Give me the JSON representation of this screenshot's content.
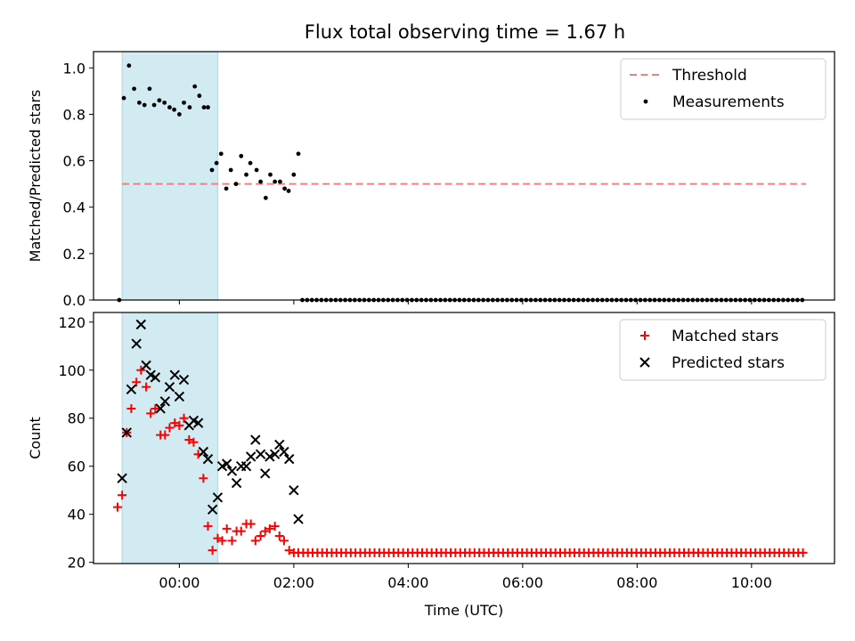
{
  "title": "Flux total observing time = 1.67 h",
  "colors": {
    "threshold": "#f08080",
    "measurement": "#000000",
    "matched": "#ff0000",
    "predicted": "#000000",
    "span": "#add8e6"
  },
  "chart_data": [
    {
      "type": "scatter",
      "ylabel": "Matched/Predicted stars",
      "ylim": [
        0,
        1.07
      ],
      "yticks": [
        0.0,
        0.2,
        0.4,
        0.6,
        0.8,
        1.0
      ],
      "ytick_labels": [
        "0.0",
        "0.2",
        "0.4",
        "0.6",
        "0.8",
        "1.0"
      ],
      "xlim": [
        -1.5,
        11.45
      ],
      "x_unit": "hours (UTC)",
      "xticks": [
        0,
        2,
        4,
        6,
        8,
        10
      ],
      "highlight_span": [
        -1.0,
        0.67
      ],
      "legend_position": "upper right",
      "series": [
        {
          "name": "Threshold",
          "kind": "dashed-line",
          "x": [
            -1.0,
            10.95
          ],
          "y": [
            0.5,
            0.5
          ]
        },
        {
          "name": "Measurements",
          "kind": "dot",
          "x": [
            -1.05,
            -0.97,
            -0.88,
            -0.79,
            -0.7,
            -0.61,
            -0.52,
            -0.44,
            -0.35,
            -0.26,
            -0.17,
            -0.09,
            0.0,
            0.08,
            0.18,
            0.27,
            0.35,
            0.43,
            0.5,
            0.57,
            0.65,
            0.73,
            0.82,
            0.9,
            0.99,
            1.08,
            1.17,
            1.24,
            1.35,
            1.42,
            1.51,
            1.59,
            1.67,
            1.76,
            1.84,
            1.91,
            2.0,
            2.08
          ],
          "y": [
            0.0,
            0.87,
            1.01,
            0.91,
            0.85,
            0.84,
            0.91,
            0.84,
            0.86,
            0.85,
            0.83,
            0.82,
            0.8,
            0.85,
            0.83,
            0.92,
            0.88,
            0.83,
            0.83,
            0.56,
            0.59,
            0.63,
            0.48,
            0.56,
            0.5,
            0.62,
            0.54,
            0.59,
            0.56,
            0.51,
            0.44,
            0.54,
            0.51,
            0.51,
            0.48,
            0.47,
            0.54,
            0.63
          ],
          "zeros_from": 2.15,
          "zeros_to": 10.92,
          "zeros_step": 0.0832
        }
      ]
    },
    {
      "type": "scatter",
      "ylabel": "Count",
      "xlabel": "Time (UTC)",
      "ylim": [
        19.5,
        124
      ],
      "yticks": [
        20,
        40,
        60,
        80,
        100,
        120
      ],
      "ytick_labels": [
        "20",
        "40",
        "60",
        "80",
        "100",
        "120"
      ],
      "xlim": [
        -1.5,
        11.45
      ],
      "xticks": [
        0,
        2,
        4,
        6,
        8,
        10
      ],
      "xtick_labels": [
        "00:00",
        "02:00",
        "04:00",
        "06:00",
        "08:00",
        "10:00"
      ],
      "highlight_span": [
        -1.0,
        0.67
      ],
      "legend_position": "upper right",
      "series": [
        {
          "name": "Matched stars",
          "marker": "+",
          "x": [
            -1.08,
            -1.0,
            -0.92,
            -0.84,
            -0.75,
            -0.67,
            -0.58,
            -0.5,
            -0.42,
            -0.33,
            -0.25,
            -0.17,
            -0.08,
            0.0,
            0.08,
            0.17,
            0.25,
            0.33,
            0.42,
            0.5,
            0.58,
            0.67,
            0.75,
            0.83,
            0.92,
            1.0,
            1.08,
            1.17,
            1.25,
            1.33,
            1.42,
            1.5,
            1.58,
            1.67,
            1.75,
            1.83,
            1.92,
            2.0
          ],
          "y": [
            43,
            48,
            74,
            84,
            95,
            100,
            93,
            82,
            84,
            73,
            73,
            76,
            78,
            77,
            80,
            71,
            70,
            65,
            55,
            35,
            25,
            30,
            29,
            34,
            29,
            33,
            33,
            36,
            36,
            29,
            31,
            33,
            34,
            35,
            31,
            29,
            25,
            24
          ],
          "constant_from": 2.08,
          "constant_to": 10.92,
          "constant_step": 0.0832,
          "constant_value": 24
        },
        {
          "name": "Predicted stars",
          "marker": "x",
          "x": [
            -1.0,
            -0.92,
            -0.84,
            -0.75,
            -0.67,
            -0.58,
            -0.5,
            -0.42,
            -0.33,
            -0.25,
            -0.17,
            -0.08,
            0.0,
            0.08,
            0.17,
            0.25,
            0.33,
            0.42,
            0.5,
            0.58,
            0.67,
            0.75,
            0.83,
            0.92,
            1.0,
            1.08,
            1.17,
            1.25,
            1.33,
            1.42,
            1.5,
            1.58,
            1.67,
            1.75,
            1.83,
            1.92,
            2.0,
            2.08
          ],
          "y": [
            55,
            74,
            92,
            111,
            119,
            102,
            98,
            97,
            84,
            87,
            93,
            98,
            89,
            96,
            77,
            79,
            78,
            66,
            63,
            42,
            47,
            60,
            61,
            58,
            53,
            60,
            60,
            64,
            71,
            65,
            57,
            64,
            65,
            69,
            66,
            63,
            50,
            38
          ]
        }
      ]
    }
  ]
}
